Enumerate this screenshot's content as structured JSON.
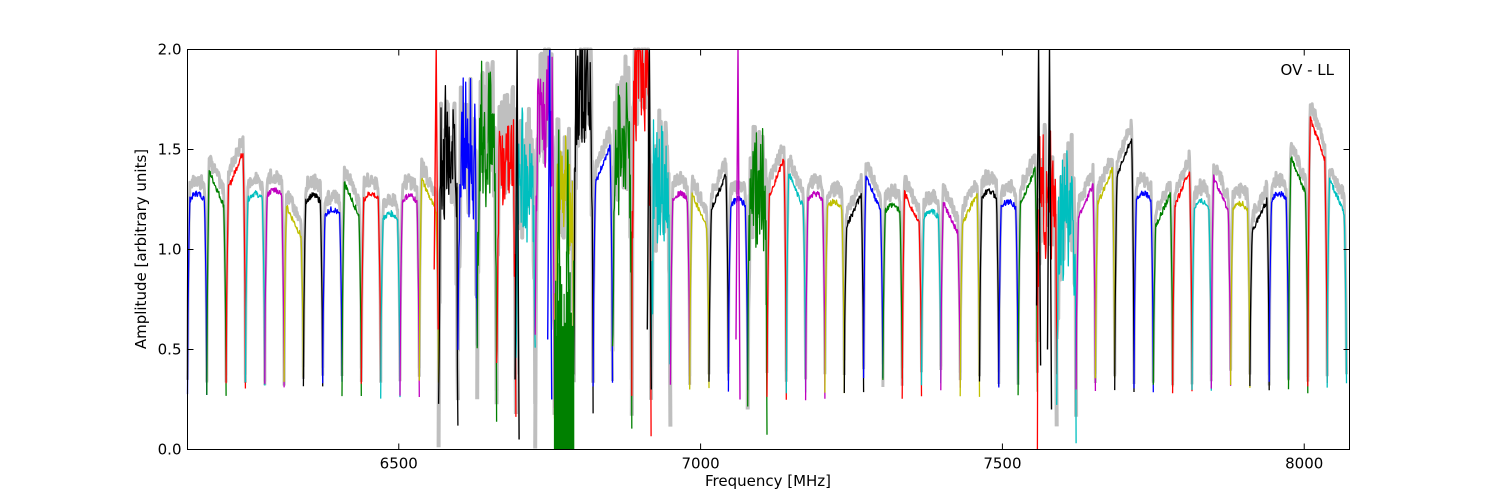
{
  "chart_data": {
    "type": "line",
    "title": "",
    "annotation": "OV - LL",
    "xlabel": "Frequency [MHz]",
    "ylabel": "Amplitude [arbitrary units]",
    "xlim": [
      6150,
      8075
    ],
    "ylim": [
      0,
      2.0
    ],
    "xticks": [
      6500,
      7000,
      7500,
      8000
    ],
    "yticks": [
      0.0,
      0.5,
      1.0,
      1.5,
      2.0
    ],
    "ytick_labels": [
      "0.0",
      "0.5",
      "1.0",
      "1.5",
      "2.0"
    ],
    "grid": false,
    "background_series_color": "#bfbfbf",
    "color_cycle": [
      "#0000ff",
      "#008000",
      "#ff0000",
      "#00bfbf",
      "#bf00bf",
      "#bfbf00",
      "#000000"
    ],
    "band_width_mhz": 32,
    "bands": [
      {
        "start": 6150,
        "peak": 1.28,
        "shape": "flat"
      },
      {
        "start": 6182,
        "peak": 1.42,
        "shape": "left"
      },
      {
        "start": 6214,
        "peak": 1.52,
        "shape": "right"
      },
      {
        "start": 6246,
        "peak": 1.28,
        "shape": "flat"
      },
      {
        "start": 6278,
        "peak": 1.3,
        "shape": "flat"
      },
      {
        "start": 6310,
        "peak": 1.24,
        "shape": "left"
      },
      {
        "start": 6342,
        "peak": 1.27,
        "shape": "flat"
      },
      {
        "start": 6374,
        "peak": 1.2,
        "shape": "flat"
      },
      {
        "start": 6406,
        "peak": 1.36,
        "shape": "left"
      },
      {
        "start": 6438,
        "peak": 1.28,
        "shape": "flat"
      },
      {
        "start": 6470,
        "peak": 1.18,
        "shape": "flat"
      },
      {
        "start": 6502,
        "peak": 1.27,
        "shape": "flat"
      },
      {
        "start": 6534,
        "peak": 1.38,
        "shape": "left"
      },
      {
        "start": 6566,
        "peak": 1.45,
        "shape": "noisy"
      },
      {
        "start": 6598,
        "peak": 1.5,
        "shape": "noisy"
      },
      {
        "start": 6630,
        "peak": 1.6,
        "shape": "noisy"
      },
      {
        "start": 6662,
        "peak": 1.45,
        "shape": "noisy"
      },
      {
        "start": 6694,
        "peak": 1.35,
        "shape": "noisy"
      },
      {
        "start": 6726,
        "peak": 1.7,
        "shape": "noisy"
      },
      {
        "start": 6758,
        "peak": 1.3,
        "shape": "noisy"
      },
      {
        "start": 6790,
        "peak": 1.85,
        "shape": "noisy"
      },
      {
        "start": 6822,
        "peak": 1.55,
        "shape": "right"
      },
      {
        "start": 6854,
        "peak": 1.55,
        "shape": "noisy"
      },
      {
        "start": 6886,
        "peak": 1.9,
        "shape": "noisy"
      },
      {
        "start": 6918,
        "peak": 1.3,
        "shape": "noisy"
      },
      {
        "start": 6950,
        "peak": 1.28,
        "shape": "flat"
      },
      {
        "start": 6982,
        "peak": 1.3,
        "shape": "left"
      },
      {
        "start": 7014,
        "peak": 1.4,
        "shape": "right"
      },
      {
        "start": 7046,
        "peak": 1.25,
        "shape": "flat"
      },
      {
        "start": 7078,
        "peak": 1.38,
        "shape": "noisy"
      },
      {
        "start": 7110,
        "peak": 1.48,
        "shape": "right"
      },
      {
        "start": 7142,
        "peak": 1.41,
        "shape": "left"
      },
      {
        "start": 7174,
        "peak": 1.28,
        "shape": "flat"
      },
      {
        "start": 7206,
        "peak": 1.24,
        "shape": "flat"
      },
      {
        "start": 7238,
        "peak": 1.3,
        "shape": "right"
      },
      {
        "start": 7270,
        "peak": 1.39,
        "shape": "left"
      },
      {
        "start": 7302,
        "peak": 1.22,
        "shape": "flat"
      },
      {
        "start": 7334,
        "peak": 1.31,
        "shape": "left"
      },
      {
        "start": 7366,
        "peak": 1.19,
        "shape": "flat"
      },
      {
        "start": 7398,
        "peak": 1.26,
        "shape": "left"
      },
      {
        "start": 7430,
        "peak": 1.31,
        "shape": "right"
      },
      {
        "start": 7462,
        "peak": 1.29,
        "shape": "flat"
      },
      {
        "start": 7494,
        "peak": 1.24,
        "shape": "flat"
      },
      {
        "start": 7526,
        "peak": 1.43,
        "shape": "right"
      },
      {
        "start": 7558,
        "peak": 1.26,
        "shape": "noisy"
      },
      {
        "start": 7590,
        "peak": 1.2,
        "shape": "noisy"
      },
      {
        "start": 7622,
        "peak": 1.35,
        "shape": "right"
      },
      {
        "start": 7654,
        "peak": 1.43,
        "shape": "right"
      },
      {
        "start": 7686,
        "peak": 1.59,
        "shape": "right"
      },
      {
        "start": 7718,
        "peak": 1.28,
        "shape": "flat"
      },
      {
        "start": 7750,
        "peak": 1.3,
        "shape": "right"
      },
      {
        "start": 7782,
        "peak": 1.42,
        "shape": "right"
      },
      {
        "start": 7814,
        "peak": 1.24,
        "shape": "flat"
      },
      {
        "start": 7846,
        "peak": 1.39,
        "shape": "left"
      },
      {
        "start": 7878,
        "peak": 1.23,
        "shape": "flat"
      },
      {
        "start": 7910,
        "peak": 1.27,
        "shape": "right"
      },
      {
        "start": 7942,
        "peak": 1.28,
        "shape": "flat"
      },
      {
        "start": 7974,
        "peak": 1.49,
        "shape": "left"
      },
      {
        "start": 8006,
        "peak": 1.69,
        "shape": "left"
      },
      {
        "start": 8038,
        "peak": 1.38,
        "shape": "left"
      }
    ],
    "spikes": [
      {
        "x": 6562,
        "y_top": 2.0,
        "y_bottom": 0.6,
        "color": "#ff0000"
      },
      {
        "x": 6696,
        "y_top": 2.0,
        "y_bottom": 0.05,
        "color": "#000000"
      },
      {
        "x": 6750,
        "y_top": 2.0,
        "y_bottom": 0.25,
        "color": "#0000ff"
      },
      {
        "x": 6765,
        "y_top": 1.6,
        "y_bottom": 0.0,
        "color": "#008000"
      },
      {
        "x": 6780,
        "y_top": 1.5,
        "y_bottom": 0.0,
        "color": "#008000"
      },
      {
        "x": 6915,
        "y_top": 2.0,
        "y_bottom": 0.3,
        "color": "#000000"
      },
      {
        "x": 7062,
        "y_top": 2.0,
        "y_bottom": 0.25,
        "color": "#bf00bf"
      },
      {
        "x": 7560,
        "y_top": 2.0,
        "y_bottom": 0.42,
        "color": "#000000"
      },
      {
        "x": 7578,
        "y_top": 2.0,
        "y_bottom": 0.2,
        "color": "#000000"
      }
    ]
  }
}
